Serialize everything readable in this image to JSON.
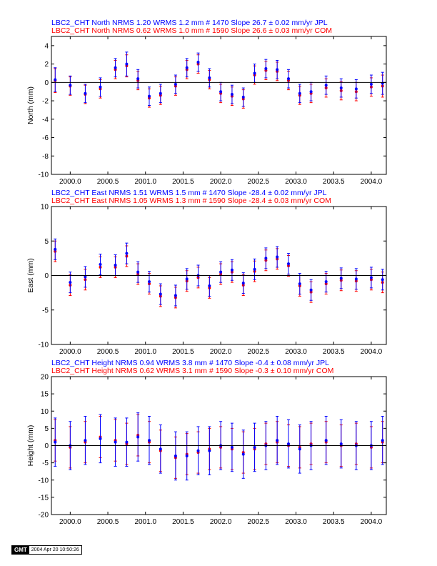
{
  "colors": {
    "jpl": "#0000ff",
    "com": "#ff0000",
    "axis": "#000000"
  },
  "footer": {
    "logo": "GMT",
    "timestamp": "2004 Apr 20 10:50:26"
  },
  "chart_data": [
    {
      "type": "scatter",
      "ylabel": "North (mm)",
      "header": [
        {
          "text": "LBC2_CHT North NRMS 1.20 WRMS  1.2 mm # 1470 Slope   26.7 ±  0.02 mm/yr JPL",
          "color": "#0000ff"
        },
        {
          "text": "LBC2_CHT North NRMS 0.62 WRMS  1.0 mm # 1590 Slope   26.6 ±  0.03 mm/yr COM",
          "color": "#ff0000"
        }
      ],
      "xlim": [
        1999.75,
        2004.2
      ],
      "ylim": [
        -10,
        5
      ],
      "xticks": [
        2000.0,
        2000.5,
        2001.0,
        2001.5,
        2002.0,
        2002.5,
        2003.0,
        2003.5,
        2004.0
      ],
      "xtick_labels": [
        "2000.0",
        "2000.5",
        "2001.0",
        "2001.5",
        "2002.0",
        "2002.5",
        "2003.0",
        "2003.5",
        "2004.0"
      ],
      "yticks": [
        -10,
        -8,
        -6,
        -4,
        -2,
        0,
        2,
        4
      ],
      "ytick_labels": [
        "-10",
        "-8",
        "-6",
        "-4",
        "-2",
        "0",
        "2",
        "4"
      ],
      "series": [
        {
          "name": "COM",
          "color": "#ff0000",
          "x": [
            1999.8,
            2000.0,
            2000.2,
            2000.4,
            2000.6,
            2000.75,
            2000.9,
            2001.05,
            2001.2,
            2001.4,
            2001.55,
            2001.7,
            2001.85,
            2002.0,
            2002.15,
            2002.3,
            2002.45,
            2002.6,
            2002.75,
            2002.9,
            2003.05,
            2003.2,
            2003.4,
            2003.6,
            2003.8,
            2004.0,
            2004.15
          ],
          "y": [
            0.2,
            -0.4,
            -1.3,
            -0.7,
            1.4,
            1.8,
            0.2,
            -1.7,
            -1.4,
            -0.4,
            1.4,
            2.0,
            0.3,
            -1.2,
            -1.5,
            -1.8,
            0.8,
            1.3,
            1.2,
            0.2,
            -1.4,
            -1.2,
            -0.6,
            -0.9,
            -1.0,
            -0.5,
            -0.4
          ],
          "err": [
            1.3,
            1.0,
            1.0,
            1.0,
            1.0,
            1.2,
            1.0,
            1.0,
            1.0,
            1.0,
            1.0,
            1.0,
            1.0,
            1.0,
            1.0,
            1.0,
            1.0,
            1.0,
            1.0,
            1.0,
            1.0,
            1.0,
            1.0,
            1.0,
            1.0,
            1.0,
            1.2
          ]
        },
        {
          "name": "JPL",
          "color": "#0000ff",
          "x": [
            1999.8,
            2000.0,
            2000.2,
            2000.4,
            2000.6,
            2000.75,
            2000.9,
            2001.05,
            2001.2,
            2001.4,
            2001.55,
            2001.7,
            2001.85,
            2002.0,
            2002.15,
            2002.3,
            2002.45,
            2002.6,
            2002.75,
            2002.9,
            2003.05,
            2003.2,
            2003.4,
            2003.6,
            2003.8,
            2004.0,
            2004.15
          ],
          "y": [
            0.3,
            -0.3,
            -1.2,
            -0.5,
            1.6,
            2.0,
            0.4,
            -1.5,
            -1.2,
            -0.2,
            1.6,
            2.2,
            0.5,
            -1.0,
            -1.3,
            -1.6,
            1.0,
            1.5,
            1.4,
            0.4,
            -1.2,
            -1.0,
            -0.3,
            -0.6,
            -0.7,
            -0.2,
            -0.1
          ],
          "err": [
            1.3,
            1.0,
            1.0,
            1.0,
            1.0,
            1.3,
            1.0,
            1.0,
            1.0,
            1.0,
            1.0,
            1.0,
            1.0,
            1.0,
            1.0,
            1.0,
            1.0,
            1.0,
            1.0,
            1.0,
            1.0,
            1.0,
            1.0,
            1.0,
            1.0,
            1.0,
            1.2
          ]
        }
      ]
    },
    {
      "type": "scatter",
      "ylabel": "East (mm)",
      "header": [
        {
          "text": "LBC2_CHT East NRMS 1.51 WRMS  1.5 mm # 1470 Slope  -28.4 ±  0.02 mm/yr JPL",
          "color": "#0000ff"
        },
        {
          "text": "LBC2_CHT East NRMS 1.05 WRMS  1.3 mm # 1590 Slope  -28.4 ±  0.03 mm/yr COM",
          "color": "#ff0000"
        }
      ],
      "xlim": [
        1999.75,
        2004.2
      ],
      "ylim": [
        -10,
        10
      ],
      "xticks": [
        2000.0,
        2000.5,
        2001.0,
        2001.5,
        2002.0,
        2002.5,
        2003.0,
        2003.5,
        2004.0
      ],
      "xtick_labels": [
        "2000.0",
        "2000.5",
        "2001.0",
        "2001.5",
        "2002.0",
        "2002.5",
        "2003.0",
        "2003.5",
        "2004.0"
      ],
      "yticks": [
        -10,
        -5,
        0,
        5,
        10
      ],
      "ytick_labels": [
        "-10",
        "-5",
        "0",
        "5",
        "10"
      ],
      "series": [
        {
          "name": "COM",
          "color": "#ff0000",
          "x": [
            1999.8,
            2000.0,
            2000.2,
            2000.4,
            2000.6,
            2000.75,
            2000.9,
            2001.05,
            2001.2,
            2001.4,
            2001.55,
            2001.7,
            2001.85,
            2002.0,
            2002.15,
            2002.3,
            2002.45,
            2002.6,
            2002.75,
            2002.9,
            2003.05,
            2003.2,
            2003.4,
            2003.6,
            2003.8,
            2004.0,
            2004.15
          ],
          "y": [
            3.5,
            -1.4,
            -0.6,
            1.2,
            1.2,
            2.8,
            0.2,
            -1.2,
            -3.0,
            -3.2,
            -0.8,
            -0.3,
            -1.8,
            0.2,
            0.5,
            -1.4,
            0.6,
            2.2,
            2.4,
            1.4,
            -1.5,
            -2.4,
            -1.2,
            -0.7,
            -0.8,
            -0.6,
            -1.0
          ],
          "err": [
            1.5,
            1.5,
            1.5,
            1.5,
            1.5,
            1.5,
            1.5,
            1.5,
            1.5,
            1.5,
            1.5,
            1.5,
            1.5,
            1.5,
            1.5,
            1.5,
            1.5,
            1.5,
            1.5,
            1.5,
            1.5,
            1.5,
            1.5,
            1.5,
            1.5,
            1.5,
            1.5
          ]
        },
        {
          "name": "JPL",
          "color": "#0000ff",
          "x": [
            1999.8,
            2000.0,
            2000.2,
            2000.4,
            2000.6,
            2000.75,
            2000.9,
            2001.05,
            2001.2,
            2001.4,
            2001.55,
            2001.7,
            2001.85,
            2002.0,
            2002.15,
            2002.3,
            2002.45,
            2002.6,
            2002.75,
            2002.9,
            2003.05,
            2003.2,
            2003.4,
            2003.6,
            2003.8,
            2004.0,
            2004.15
          ],
          "y": [
            3.8,
            -1.0,
            -0.2,
            1.6,
            1.5,
            3.2,
            0.5,
            -0.9,
            -2.7,
            -2.9,
            -0.5,
            0.0,
            -1.5,
            0.5,
            0.8,
            -1.1,
            0.9,
            2.5,
            2.7,
            1.7,
            -1.2,
            -2.1,
            -0.9,
            -0.4,
            -0.5,
            -0.3,
            -0.6
          ],
          "err": [
            1.5,
            1.5,
            1.5,
            1.5,
            1.5,
            1.5,
            1.5,
            1.5,
            1.5,
            1.5,
            1.5,
            1.5,
            1.5,
            1.5,
            1.5,
            1.5,
            1.5,
            1.5,
            1.5,
            1.5,
            1.5,
            1.5,
            1.5,
            1.5,
            1.5,
            1.5,
            1.5
          ]
        }
      ]
    },
    {
      "type": "scatter",
      "ylabel": "Height (mm)",
      "header": [
        {
          "text": "LBC2_CHT Height NRMS 0.94 WRMS  3.8 mm # 1470 Slope   -0.4 ±  0.08 mm/yr JPL",
          "color": "#0000ff"
        },
        {
          "text": "LBC2_CHT Height NRMS 0.62 WRMS  3.1 mm # 1590 Slope   -0.3 ±  0.10 mm/yr COM",
          "color": "#ff0000"
        }
      ],
      "xlim": [
        1999.75,
        2004.2
      ],
      "ylim": [
        -20,
        20
      ],
      "xticks": [
        2000.0,
        2000.5,
        2001.0,
        2001.5,
        2002.0,
        2002.5,
        2003.0,
        2003.5,
        2004.0
      ],
      "xtick_labels": [
        "2000.0",
        "2000.5",
        "2001.0",
        "2001.5",
        "2002.0",
        "2002.5",
        "2003.0",
        "2003.5",
        "2004.0"
      ],
      "yticks": [
        -20,
        -15,
        -10,
        -5,
        0,
        5,
        10,
        15,
        20
      ],
      "ytick_labels": [
        "-20",
        "-15",
        "-10",
        "-5",
        "0",
        "5",
        "10",
        "15",
        "20"
      ],
      "series": [
        {
          "name": "COM",
          "color": "#ff0000",
          "x": [
            1999.8,
            2000.0,
            2000.2,
            2000.4,
            2000.6,
            2000.75,
            2000.9,
            2001.05,
            2001.2,
            2001.4,
            2001.55,
            2001.7,
            2001.85,
            2002.0,
            2002.15,
            2002.3,
            2002.45,
            2002.6,
            2002.75,
            2002.9,
            2003.05,
            2003.2,
            2003.4,
            2003.6,
            2003.8,
            2004.0,
            2004.15
          ],
          "y": [
            1.5,
            -0.5,
            1.0,
            2.5,
            1.5,
            0.5,
            3.0,
            1.0,
            -1.5,
            -3.5,
            -2.5,
            -2.0,
            -1.0,
            -0.5,
            -1.0,
            -2.0,
            -1.0,
            0.5,
            1.0,
            0.0,
            -0.5,
            0.5,
            1.0,
            0.0,
            0.5,
            -0.5,
            1.0
          ],
          "err": [
            6,
            6,
            6,
            6,
            6,
            6,
            6,
            6,
            6,
            6,
            6,
            6,
            6,
            6,
            6,
            6,
            6,
            6,
            6,
            6,
            6,
            6,
            6,
            6,
            6,
            6,
            6
          ]
        },
        {
          "name": "JPL",
          "color": "#0000ff",
          "x": [
            1999.8,
            2000.0,
            2000.2,
            2000.4,
            2000.6,
            2000.75,
            2000.9,
            2001.05,
            2001.2,
            2001.4,
            2001.55,
            2001.7,
            2001.85,
            2002.0,
            2002.15,
            2002.3,
            2002.45,
            2002.6,
            2002.75,
            2002.9,
            2003.05,
            2003.2,
            2003.4,
            2003.6,
            2003.8,
            2004.0,
            2004.15
          ],
          "y": [
            1.0,
            0.0,
            1.5,
            2.0,
            1.0,
            1.0,
            2.5,
            1.5,
            -1.0,
            -3.0,
            -3.0,
            -1.5,
            -1.5,
            0.0,
            -0.5,
            -2.5,
            -0.5,
            0.0,
            1.5,
            0.5,
            -1.0,
            0.0,
            1.5,
            0.5,
            0.0,
            0.0,
            1.5
          ],
          "err": [
            7,
            7,
            7,
            7,
            7,
            7,
            7,
            7,
            7,
            7,
            7,
            7,
            7,
            7,
            7,
            7,
            7,
            7,
            7,
            7,
            7,
            7,
            7,
            7,
            7,
            7,
            7
          ]
        }
      ]
    }
  ]
}
